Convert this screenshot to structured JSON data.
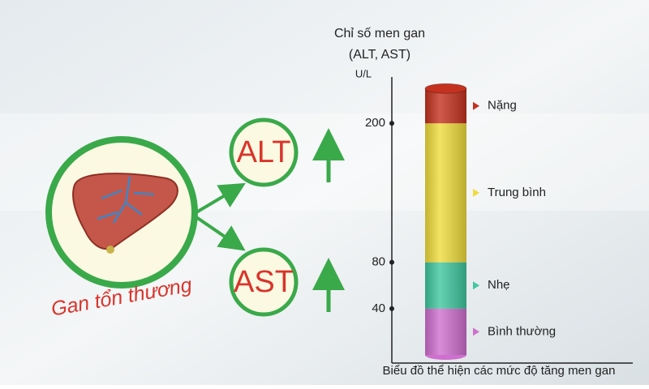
{
  "diagram": {
    "label": "Gan tổn thương",
    "nodes": [
      "ALT",
      "AST"
    ]
  },
  "chart_data": {
    "type": "stacked-column",
    "title": "Chỉ số men gan",
    "subtitle": "(ALT, AST)",
    "y_label": "U/L",
    "x_label": "Biểu đồ thể hiện các mức độ tăng men gan",
    "categories": [
      null
    ],
    "series": [
      {
        "name": "Bình thường",
        "color": "#cf6fcf",
        "values": [
          40
        ]
      },
      {
        "name": "Nhẹ",
        "color": "#3fc79f",
        "values": [
          40
        ]
      },
      {
        "name": "Trung bình",
        "color": "#f0dc3c",
        "values": [
          120
        ]
      },
      {
        "name": "Nặng",
        "color": "#c4321f",
        "values": [
          30
        ]
      }
    ],
    "ylim": [
      0,
      240
    ],
    "yticks": [
      40,
      80,
      200
    ],
    "grid": false
  }
}
